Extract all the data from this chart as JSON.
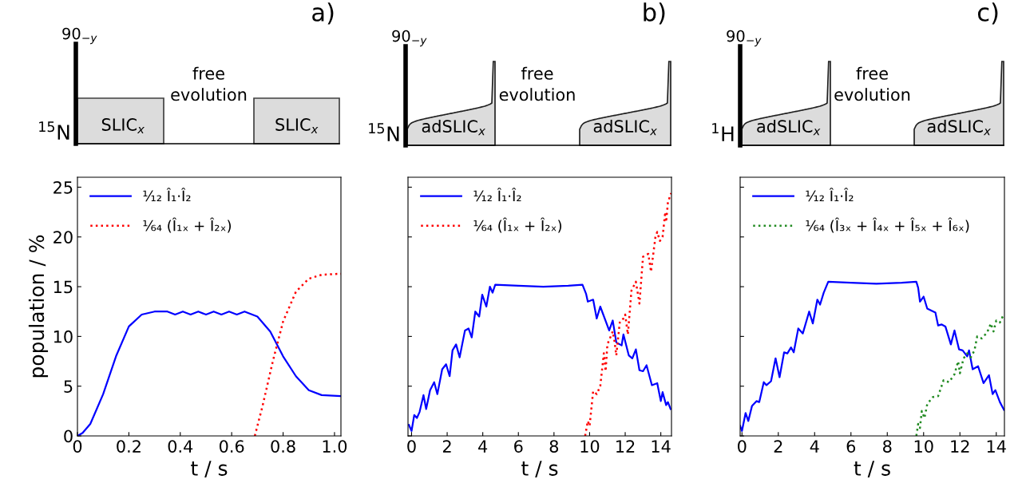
{
  "chart_data": [
    {
      "type": "line",
      "title": "a)",
      "xlabel": "t / s",
      "ylabel": "population / %",
      "xlim": [
        0,
        1.025
      ],
      "xticks": [
        0,
        {
          "value": 0.2,
          "label": "0.2"
        },
        {
          "value": 0.4,
          "label": "0.4"
        },
        {
          "value": 0.6,
          "label": "0.6"
        },
        {
          "value": 0.8,
          "label": "0.8"
        },
        {
          "value": 1.0,
          "label": "1.0"
        }
      ],
      "ylim": [
        0,
        26
      ],
      "yticks": [
        0,
        5,
        10,
        15,
        20,
        25
      ],
      "legend": "top left",
      "grid": false,
      "annotations": [
        "90$_{−y}$",
        "$^{15}$N",
        "SLIC$_{x}$",
        "free\nevolution",
        "SLIC$_{x}$"
      ],
      "series": [
        {
          "name": "¹⁄₁₂ Î₁·Î₂",
          "color": "#0000ff",
          "line_style": "solid",
          "x": [
            0,
            0.02,
            0.05,
            0.1,
            0.15,
            0.2,
            0.25,
            0.3,
            0.35,
            0.38,
            0.41,
            0.44,
            0.47,
            0.5,
            0.53,
            0.56,
            0.59,
            0.62,
            0.65,
            0.7,
            0.75,
            0.8,
            0.85,
            0.9,
            0.95,
            1.025
          ],
          "values": [
            0,
            0.3,
            1.2,
            4.2,
            8,
            11,
            12.2,
            12.5,
            12.5,
            12.2,
            12.5,
            12.2,
            12.5,
            12.2,
            12.5,
            12.2,
            12.5,
            12.2,
            12.5,
            12,
            10.5,
            8,
            6,
            4.6,
            4.1,
            4
          ]
        },
        {
          "name": "¹⁄₆₄ (Î₁ₓ + Î₂ₓ)",
          "color": "#ff0000",
          "line_style": "dotted",
          "x": [
            0.69,
            0.72,
            0.76,
            0.8,
            0.85,
            0.9,
            0.95,
            1.025
          ],
          "values": [
            0,
            3,
            7.5,
            11.5,
            14.5,
            15.8,
            16.2,
            16.3
          ]
        }
      ]
    },
    {
      "type": "line",
      "title": "b)",
      "xlabel": "t / s",
      "xlim": [
        -0.2,
        14.6
      ],
      "xticks": [
        0,
        2,
        4,
        6,
        8,
        10,
        12,
        14
      ],
      "ylim": [
        0,
        26
      ],
      "yticks": [
        {
          "value": 0,
          "label": null
        },
        {
          "value": 5,
          "label": null
        },
        {
          "value": 10,
          "label": null
        },
        {
          "value": 15,
          "label": null
        },
        {
          "value": 20,
          "label": null
        },
        {
          "value": 25,
          "label": null
        }
      ],
      "tick_labels": "x",
      "legend": "top left",
      "grid": false,
      "annotations": [
        "90$_{−y}$",
        "$^{15}$N",
        "adSLIC$_{x}$",
        "free\nevolution",
        "adSLIC$_{x}$"
      ],
      "series": [
        {
          "name": "¹⁄₁₂ Î₁·Î₂",
          "color": "#0000ff",
          "line_style": "solid",
          "x": [
            -0.15,
            0,
            0.15,
            0.3,
            0.45,
            0.67,
            0.82,
            1.04,
            1.27,
            1.45,
            1.72,
            1.94,
            2.14,
            2.3,
            2.5,
            2.7,
            3.0,
            3.2,
            3.38,
            3.58,
            3.8,
            3.97,
            4.2,
            4.4,
            4.55,
            4.7,
            6,
            7.4,
            8.8,
            9.6,
            9.8,
            9.9,
            10.2,
            10.4,
            10.6,
            11.1,
            11.3,
            11.5,
            11.8,
            11.9,
            12.2,
            12.4,
            12.6,
            12.8,
            13.0,
            13.2,
            13.5,
            13.8,
            14.0,
            14.1,
            14.3,
            14.4,
            14.55
          ],
          "values": [
            1.1,
            0.5,
            2.1,
            1.8,
            2.4,
            4.1,
            2.7,
            4.6,
            5.4,
            4.2,
            6.7,
            7.2,
            6.0,
            8.6,
            9.2,
            7.9,
            10.6,
            10.8,
            9.9,
            12.5,
            12.0,
            14.2,
            13.0,
            15.0,
            14.4,
            15.2,
            15.1,
            15.0,
            15.1,
            15.2,
            14.3,
            13.5,
            13.7,
            11.8,
            13.0,
            10.6,
            11.6,
            9.4,
            9.1,
            10.2,
            8.1,
            7.8,
            8.7,
            6.6,
            6.5,
            7.1,
            5.1,
            5.3,
            3.5,
            4.4,
            3.1,
            3.4,
            2.7
          ]
        },
        {
          "name": "¹⁄₆₄ (Î₁ₓ + Î₂ₓ)",
          "color": "#ff0000",
          "line_style": "dotted",
          "x": [
            9.75,
            9.9,
            10.0,
            10.2,
            10.4,
            10.6,
            10.8,
            10.9,
            11.0,
            11.3,
            11.4,
            11.5,
            11.7,
            11.9,
            12.0,
            12.15,
            12.35,
            12.6,
            12.8,
            13.0,
            13.3,
            13.45,
            13.7,
            13.8,
            13.95,
            14.1,
            14.25,
            14.3,
            14.4,
            14.5,
            14.58
          ],
          "values": [
            0,
            1.5,
            1.0,
            4.5,
            4.2,
            5.0,
            8.3,
            6.5,
            9.2,
            10.5,
            9.5,
            8.1,
            11.5,
            11.8,
            12.2,
            10.2,
            14.6,
            15.5,
            13.3,
            18.0,
            18.3,
            16.5,
            20.0,
            20.5,
            19.6,
            20.0,
            22.5,
            21.5,
            23.5,
            24.0,
            24.4
          ]
        }
      ]
    },
    {
      "type": "line",
      "title": "c)",
      "xlabel": "t / s",
      "xlim": [
        -0.1,
        14.45
      ],
      "xticks": [
        0,
        2,
        4,
        6,
        8,
        10,
        12,
        14
      ],
      "ylim": [
        0,
        26
      ],
      "yticks": [
        {
          "value": 0,
          "label": null
        },
        {
          "value": 5,
          "label": null
        },
        {
          "value": 10,
          "label": null
        },
        {
          "value": 15,
          "label": null
        },
        {
          "value": 20,
          "label": null
        },
        {
          "value": 25,
          "label": null
        }
      ],
      "tick_labels": "x",
      "legend": "top left",
      "grid": false,
      "annotations": [
        "90$_{−y}$",
        "$^{1}$H",
        "adSLIC$_{x}$",
        "free\nevolution",
        "adSLIC$_{x}$"
      ],
      "series": [
        {
          "name": "¹⁄₁₂ Î₁·Î₂",
          "color": "#0000ff",
          "line_style": "solid",
          "x": [
            -0.1,
            0,
            0.2,
            0.35,
            0.55,
            0.8,
            0.95,
            1.2,
            1.35,
            1.6,
            1.85,
            2.07,
            2.32,
            2.5,
            2.7,
            2.85,
            3.1,
            3.35,
            3.7,
            3.9,
            4.15,
            4.3,
            4.5,
            4.75,
            6,
            7.4,
            8.8,
            9.6,
            9.7,
            9.8,
            10.0,
            10.2,
            10.65,
            10.8,
            11.0,
            11.2,
            11.5,
            11.7,
            11.95,
            12.15,
            12.4,
            12.5,
            12.7,
            13.0,
            13.3,
            13.6,
            13.8,
            13.95,
            14.2,
            14.43
          ],
          "values": [
            1.0,
            0.5,
            2.3,
            1.5,
            3.0,
            3.5,
            3.4,
            5.4,
            5.1,
            5.5,
            7.8,
            5.9,
            8.4,
            8.3,
            8.9,
            8.4,
            10.8,
            10.3,
            12.5,
            11.3,
            13.7,
            13.2,
            14.4,
            15.5,
            15.4,
            15.3,
            15.4,
            15.5,
            14.9,
            13.5,
            14.0,
            12.8,
            12.4,
            11.1,
            11.2,
            11.0,
            9.2,
            10.6,
            8.7,
            8.6,
            8.0,
            8.6,
            6.7,
            7.0,
            5.3,
            6.1,
            4.2,
            4.6,
            3.4,
            2.6
          ]
        },
        {
          "name": "¹⁄₆₄ (Î₃ₓ + Î₄ₓ + Î₅ₓ + Î₆ₓ)",
          "color": "#228b22",
          "line_style": "dotted",
          "x": [
            9.6,
            9.7,
            9.8,
            9.9,
            10.05,
            10.2,
            10.5,
            10.8,
            11.1,
            11.4,
            11.7,
            11.9,
            12.0,
            12.2,
            12.4,
            12.6,
            12.8,
            12.95,
            13.2,
            13.5,
            13.7,
            13.85,
            14.0,
            14.2,
            14.43
          ],
          "values": [
            0,
            1.2,
            0.8,
            2.5,
            1.8,
            3.2,
            3.9,
            4.0,
            5.6,
            5.4,
            6.2,
            7.5,
            6.3,
            7.8,
            8.3,
            7.9,
            8.6,
            10.0,
            9.8,
            10.4,
            11.3,
            10.5,
            11.6,
            11.4,
            12.3
          ]
        }
      ]
    }
  ]
}
